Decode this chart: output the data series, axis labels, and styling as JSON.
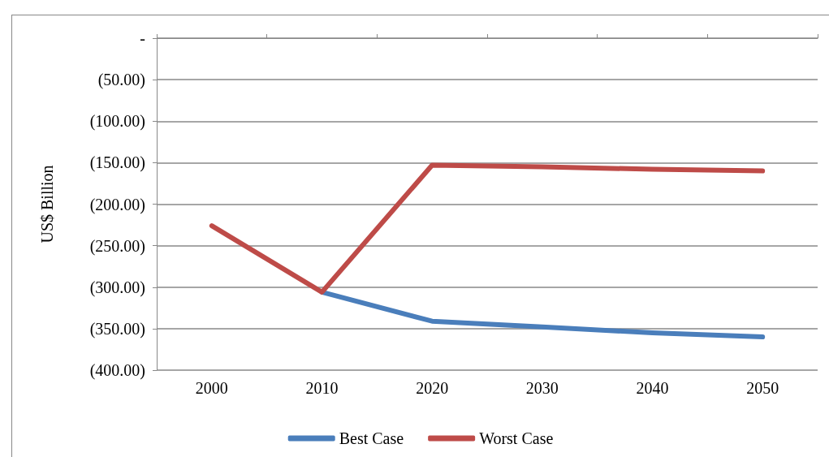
{
  "chart_data": {
    "type": "line",
    "ylabel": "US$ Billion",
    "categories": [
      "2000",
      "2010",
      "2020",
      "2030",
      "2040",
      "2050"
    ],
    "series": [
      {
        "name": "Best Case",
        "color": "#4a7ebb",
        "values": [
          null,
          -306,
          -341,
          -348,
          -355,
          -360
        ]
      },
      {
        "name": "Worst Case",
        "color": "#be4b48",
        "values": [
          -226,
          -306,
          -153,
          -155,
          -158,
          -160
        ]
      }
    ],
    "ylim": [
      -400,
      0
    ],
    "yticks": [
      {
        "value": -400,
        "label": "(400.00)"
      },
      {
        "value": -350,
        "label": "(350.00)"
      },
      {
        "value": -300,
        "label": "(300.00)"
      },
      {
        "value": -250,
        "label": "(250.00)"
      },
      {
        "value": -200,
        "label": "(200.00)"
      },
      {
        "value": -150,
        "label": "(150.00)"
      },
      {
        "value": -100,
        "label": "(100.00)"
      },
      {
        "value": -50,
        "label": "(50.00)"
      },
      {
        "value": 0,
        "label": "-"
      }
    ],
    "grid": "y",
    "legend": "bottom",
    "marker": "none",
    "line_style": "solid"
  }
}
